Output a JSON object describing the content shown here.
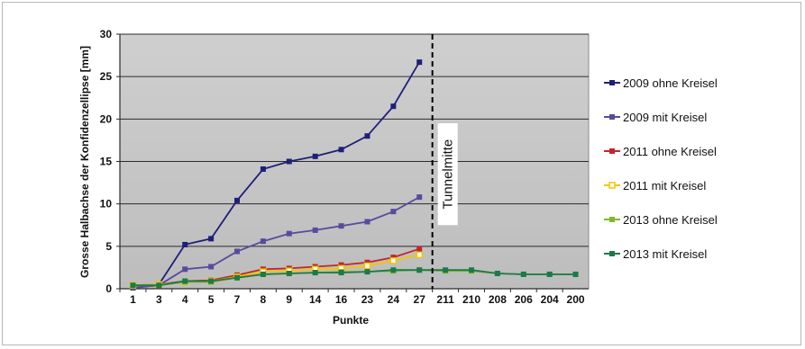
{
  "chart_data": {
    "type": "line",
    "title": "",
    "xlabel": "Punkte",
    "ylabel": "Grosse Halbachse der Konfidenzellipse [mm]",
    "ylim": [
      0,
      30
    ],
    "yticks": [
      0,
      5,
      10,
      15,
      20,
      25,
      30
    ],
    "grid": "horizontal",
    "legend_position": "right",
    "categories": [
      "1",
      "3",
      "4",
      "5",
      "7",
      "8",
      "9",
      "14",
      "16",
      "23",
      "24",
      "27",
      "211",
      "210",
      "208",
      "206",
      "204",
      "200"
    ],
    "annotations": [
      {
        "text": "Tunnelmitte",
        "between_categories": [
          "27",
          "211"
        ],
        "style": "dashed-vertical-line"
      }
    ],
    "series": [
      {
        "name": "2009 ohne Kreisel",
        "color": "#1f1f7a",
        "marker": "square",
        "values": [
          0.1,
          0.5,
          5.2,
          5.9,
          10.4,
          14.1,
          15.0,
          15.6,
          16.4,
          18.0,
          21.5,
          26.7,
          null,
          null,
          null,
          null,
          null,
          null
        ]
      },
      {
        "name": "2009 mit Kreisel",
        "color": "#5a4a9e",
        "marker": "square",
        "values": [
          0.1,
          0.4,
          2.3,
          2.6,
          4.4,
          5.6,
          6.5,
          6.9,
          7.4,
          7.9,
          9.1,
          10.8,
          null,
          null,
          null,
          null,
          null,
          null
        ]
      },
      {
        "name": "2011 ohne Kreisel",
        "color": "#c0272d",
        "marker": "square",
        "values": [
          0.4,
          0.5,
          0.9,
          1.0,
          1.6,
          2.3,
          2.4,
          2.6,
          2.8,
          3.1,
          3.7,
          4.7,
          null,
          null,
          null,
          null,
          null,
          null
        ]
      },
      {
        "name": "2011 mit Kreisel",
        "color": "#f5c400",
        "marker": "square-hollow",
        "values": [
          0.4,
          0.5,
          0.8,
          0.9,
          1.4,
          2.0,
          2.1,
          2.3,
          2.4,
          2.7,
          3.3,
          4.0,
          null,
          null,
          null,
          null,
          null,
          null
        ]
      },
      {
        "name": "2013 ohne Kreisel",
        "color": "#7fba2c",
        "marker": "square",
        "values": [
          0.4,
          0.4,
          0.8,
          0.8,
          1.3,
          1.7,
          1.8,
          1.9,
          2.0,
          2.0,
          2.1,
          2.2,
          2.1,
          2.1,
          1.8,
          1.7,
          1.7,
          1.7
        ]
      },
      {
        "name": "2013 mit Kreisel",
        "color": "#1c7a4a",
        "marker": "square",
        "values": [
          0.4,
          0.4,
          0.9,
          0.9,
          1.3,
          1.7,
          1.8,
          1.9,
          1.9,
          2.0,
          2.2,
          2.2,
          2.2,
          2.2,
          1.8,
          1.7,
          1.7,
          1.7
        ]
      }
    ]
  }
}
